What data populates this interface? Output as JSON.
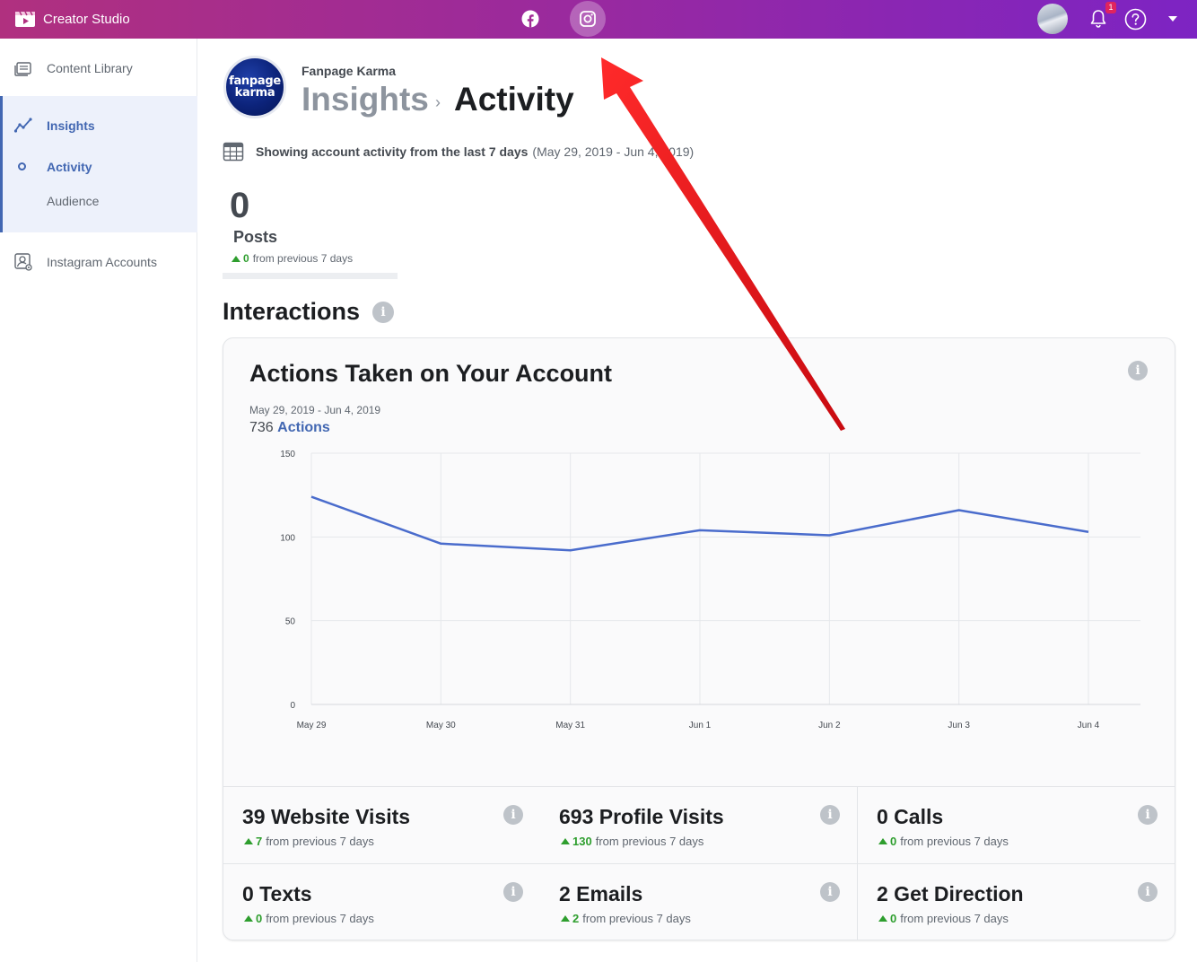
{
  "topbar": {
    "title": "Creator Studio",
    "platforms": [
      {
        "name": "facebook-icon",
        "active": false
      },
      {
        "name": "instagram-icon",
        "active": true
      }
    ],
    "notification_count": "1",
    "colors": {
      "gradient_start": "#b0307f",
      "gradient_end": "#7d24c3"
    }
  },
  "sidebar": {
    "items": [
      {
        "label": "Content Library",
        "icon": "content-library-icon"
      },
      {
        "label": "Insights",
        "icon": "insights-icon"
      },
      {
        "label": "Activity"
      },
      {
        "label": "Audience"
      },
      {
        "label": "Instagram Accounts",
        "icon": "instagram-accounts-icon"
      }
    ]
  },
  "header": {
    "page_name": "Fanpage Karma",
    "logo_line1": "fanpage",
    "logo_line2": "karma",
    "breadcrumb_parent": "Insights",
    "breadcrumb_current": "Activity"
  },
  "range": {
    "label": "Showing account activity from the last 7 days",
    "dates": "(May 29, 2019 - Jun 4, 2019)"
  },
  "posts": {
    "value": "0",
    "label": "Posts",
    "delta": "0",
    "delta_text": "from previous 7 days"
  },
  "interactions": {
    "title": "Interactions",
    "card": {
      "title": "Actions Taken on Your Account",
      "dates": "May 29, 2019 - Jun 4, 2019",
      "total": "736",
      "total_label": "Actions"
    }
  },
  "chart_data": {
    "type": "line",
    "categories": [
      "May 29",
      "May 30",
      "May 31",
      "Jun 1",
      "Jun 2",
      "Jun 3",
      "Jun 4"
    ],
    "series": [
      {
        "values": [
          124,
          96,
          92,
          104,
          101,
          116,
          103
        ],
        "color": "#4a6ccc"
      }
    ],
    "ylim": [
      0,
      150
    ],
    "yticks": [
      0,
      50,
      100,
      150
    ],
    "grid": true
  },
  "metrics": [
    {
      "title": "39 Website Visits",
      "delta": "7",
      "delta_text": "from previous 7 days"
    },
    {
      "title": "693 Profile Visits",
      "delta": "130",
      "delta_text": "from previous 7 days"
    },
    {
      "title": "0 Calls",
      "delta": "0",
      "delta_text": "from previous 7 days"
    },
    {
      "title": "0 Texts",
      "delta": "0",
      "delta_text": "from previous 7 days"
    },
    {
      "title": "2 Emails",
      "delta": "2",
      "delta_text": "from previous 7 days"
    },
    {
      "title": "2 Get Direction",
      "delta": "0",
      "delta_text": "from previous 7 days"
    }
  ],
  "annotation": {
    "icon": "red-arrow-icon",
    "color": "#e3141b"
  }
}
